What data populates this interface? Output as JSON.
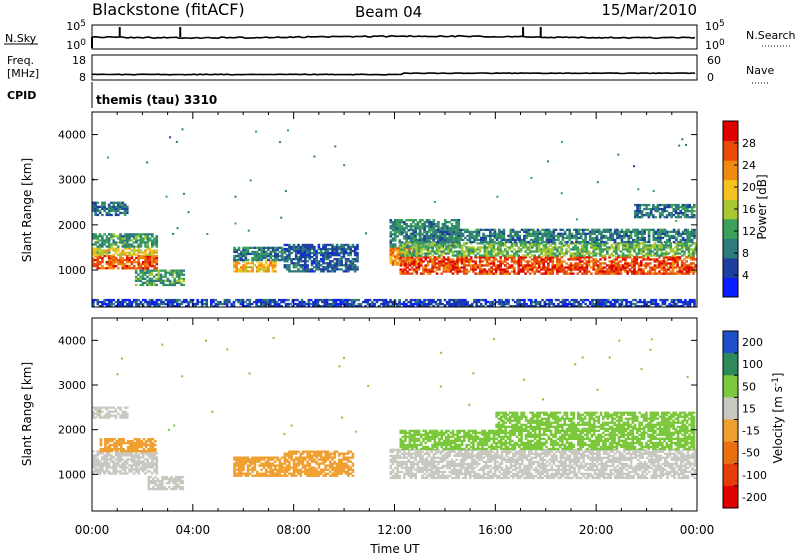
{
  "header": {
    "title": "Blackstone (fitACF)",
    "beam": "Beam 04",
    "date": "15/Mar/2010"
  },
  "strips": {
    "nsky_label": "N.Sky",
    "nsky_tick_top": "10^5",
    "nsky_tick_bottom": "10^0",
    "nsearch_label": "N.Search",
    "nsearch_tick_top": "10^5",
    "nsearch_tick_bottom": "10^0",
    "freq_label_1": "Freq.",
    "freq_label_2": "[MHz]",
    "freq_tick_top": "18",
    "freq_tick_bottom": "8",
    "nave_label": "Nave",
    "nave_tick_top": "60",
    "nave_tick_bottom": "0",
    "cpid_label": "CPID",
    "cpid_value": "themis (tau) 3310"
  },
  "axes": {
    "xlabel": "Time UT",
    "ylabel": "Slant Range [km]",
    "x_ticks": [
      "00:00",
      "04:00",
      "08:00",
      "12:00",
      "16:00",
      "20:00",
      "00:00"
    ],
    "y_ticks": [
      "1000",
      "2000",
      "3000",
      "4000"
    ]
  },
  "colors": {
    "velocity_ground": "#c8c8c0"
  },
  "chart_data": [
    {
      "type": "heatmap",
      "name": "power",
      "xlabel": "Time UT",
      "ylabel": "Slant Range [km]",
      "xlim": [
        0,
        24
      ],
      "ylim": [
        180,
        4500
      ],
      "colorbar": {
        "label": "Power [dB]",
        "ticks": [
          "4",
          "8",
          "12",
          "16",
          "20",
          "24",
          "28"
        ],
        "tick_values": [
          4,
          8,
          12,
          16,
          20,
          24,
          28
        ],
        "range": [
          0,
          32
        ],
        "colors": [
          "#0a1eff",
          "#1f3fa0",
          "#2e7b7b",
          "#3aa05a",
          "#a8c832",
          "#f5c320",
          "#f08a10",
          "#e84a0a",
          "#e00000"
        ]
      },
      "regions": [
        {
          "t0": 0.0,
          "t1": 2.6,
          "r0": 1020,
          "r1": 1320,
          "level": 26
        },
        {
          "t0": 0.0,
          "t1": 2.6,
          "r0": 1320,
          "r1": 1500,
          "level": 18
        },
        {
          "t0": 0.0,
          "t1": 2.6,
          "r0": 1500,
          "r1": 1800,
          "level": 11
        },
        {
          "t0": 0.0,
          "t1": 1.4,
          "r0": 2200,
          "r1": 2500,
          "level": 8
        },
        {
          "t0": 1.7,
          "t1": 3.6,
          "r0": 650,
          "r1": 1000,
          "level": 12
        },
        {
          "t0": 5.6,
          "t1": 7.3,
          "r0": 950,
          "r1": 1200,
          "level": 21
        },
        {
          "t0": 5.6,
          "t1": 7.5,
          "r0": 1200,
          "r1": 1500,
          "level": 9
        },
        {
          "t0": 7.6,
          "t1": 10.5,
          "r0": 950,
          "r1": 1550,
          "level": 7
        },
        {
          "t0": 11.8,
          "t1": 13.0,
          "r0": 1100,
          "r1": 1500,
          "level": 24
        },
        {
          "t0": 11.8,
          "t1": 14.5,
          "r0": 1500,
          "r1": 2100,
          "level": 10
        },
        {
          "t0": 12.2,
          "t1": 23.9,
          "r0": 900,
          "r1": 1300,
          "level": 27
        },
        {
          "t0": 12.2,
          "t1": 23.9,
          "r0": 1300,
          "r1": 1600,
          "level": 14
        },
        {
          "t0": 12.6,
          "t1": 23.9,
          "r0": 1600,
          "r1": 1900,
          "level": 9
        },
        {
          "t0": 21.5,
          "t1": 23.9,
          "r0": 2150,
          "r1": 2450,
          "level": 9
        },
        {
          "t0": 0.0,
          "t1": 23.9,
          "r0": 180,
          "r1": 320,
          "level": 5
        }
      ]
    },
    {
      "type": "heatmap",
      "name": "velocity",
      "xlabel": "Time UT",
      "ylabel": "Slant Range [km]",
      "xlim": [
        0,
        24
      ],
      "ylim": [
        180,
        4500
      ],
      "colorbar": {
        "label": "Velocity [m s^-1]",
        "ticks": [
          "200",
          "100",
          "50",
          "15",
          "-15",
          "-50",
          "-100",
          "-200"
        ],
        "tick_values": [
          200,
          100,
          50,
          15,
          -15,
          -50,
          -100,
          -200
        ],
        "colors": [
          "#1e50c8",
          "#2e8a5a",
          "#7cc83c",
          "#c8c8c0",
          "#f0a030",
          "#e87010",
          "#e83c0a",
          "#e00000"
        ]
      },
      "regions": [
        {
          "t0": 0.0,
          "t1": 2.6,
          "r0": 1000,
          "r1": 1500,
          "level": 0
        },
        {
          "t0": 0.0,
          "t1": 1.4,
          "r0": 2250,
          "r1": 2500,
          "level": 0
        },
        {
          "t0": 0.3,
          "t1": 2.5,
          "r0": 1500,
          "r1": 1800,
          "level": -30
        },
        {
          "t0": 2.2,
          "t1": 3.6,
          "r0": 650,
          "r1": 950,
          "level": 0
        },
        {
          "t0": 5.6,
          "t1": 7.5,
          "r0": 950,
          "r1": 1400,
          "level": -40
        },
        {
          "t0": 7.6,
          "t1": 10.3,
          "r0": 950,
          "r1": 1500,
          "level": -30
        },
        {
          "t0": 11.8,
          "t1": 23.9,
          "r0": 900,
          "r1": 1550,
          "level": 0
        },
        {
          "t0": 12.2,
          "t1": 16.0,
          "r0": 1550,
          "r1": 2000,
          "level": 30
        },
        {
          "t0": 16.0,
          "t1": 23.9,
          "r0": 1550,
          "r1": 2400,
          "level": 30
        }
      ]
    }
  ]
}
